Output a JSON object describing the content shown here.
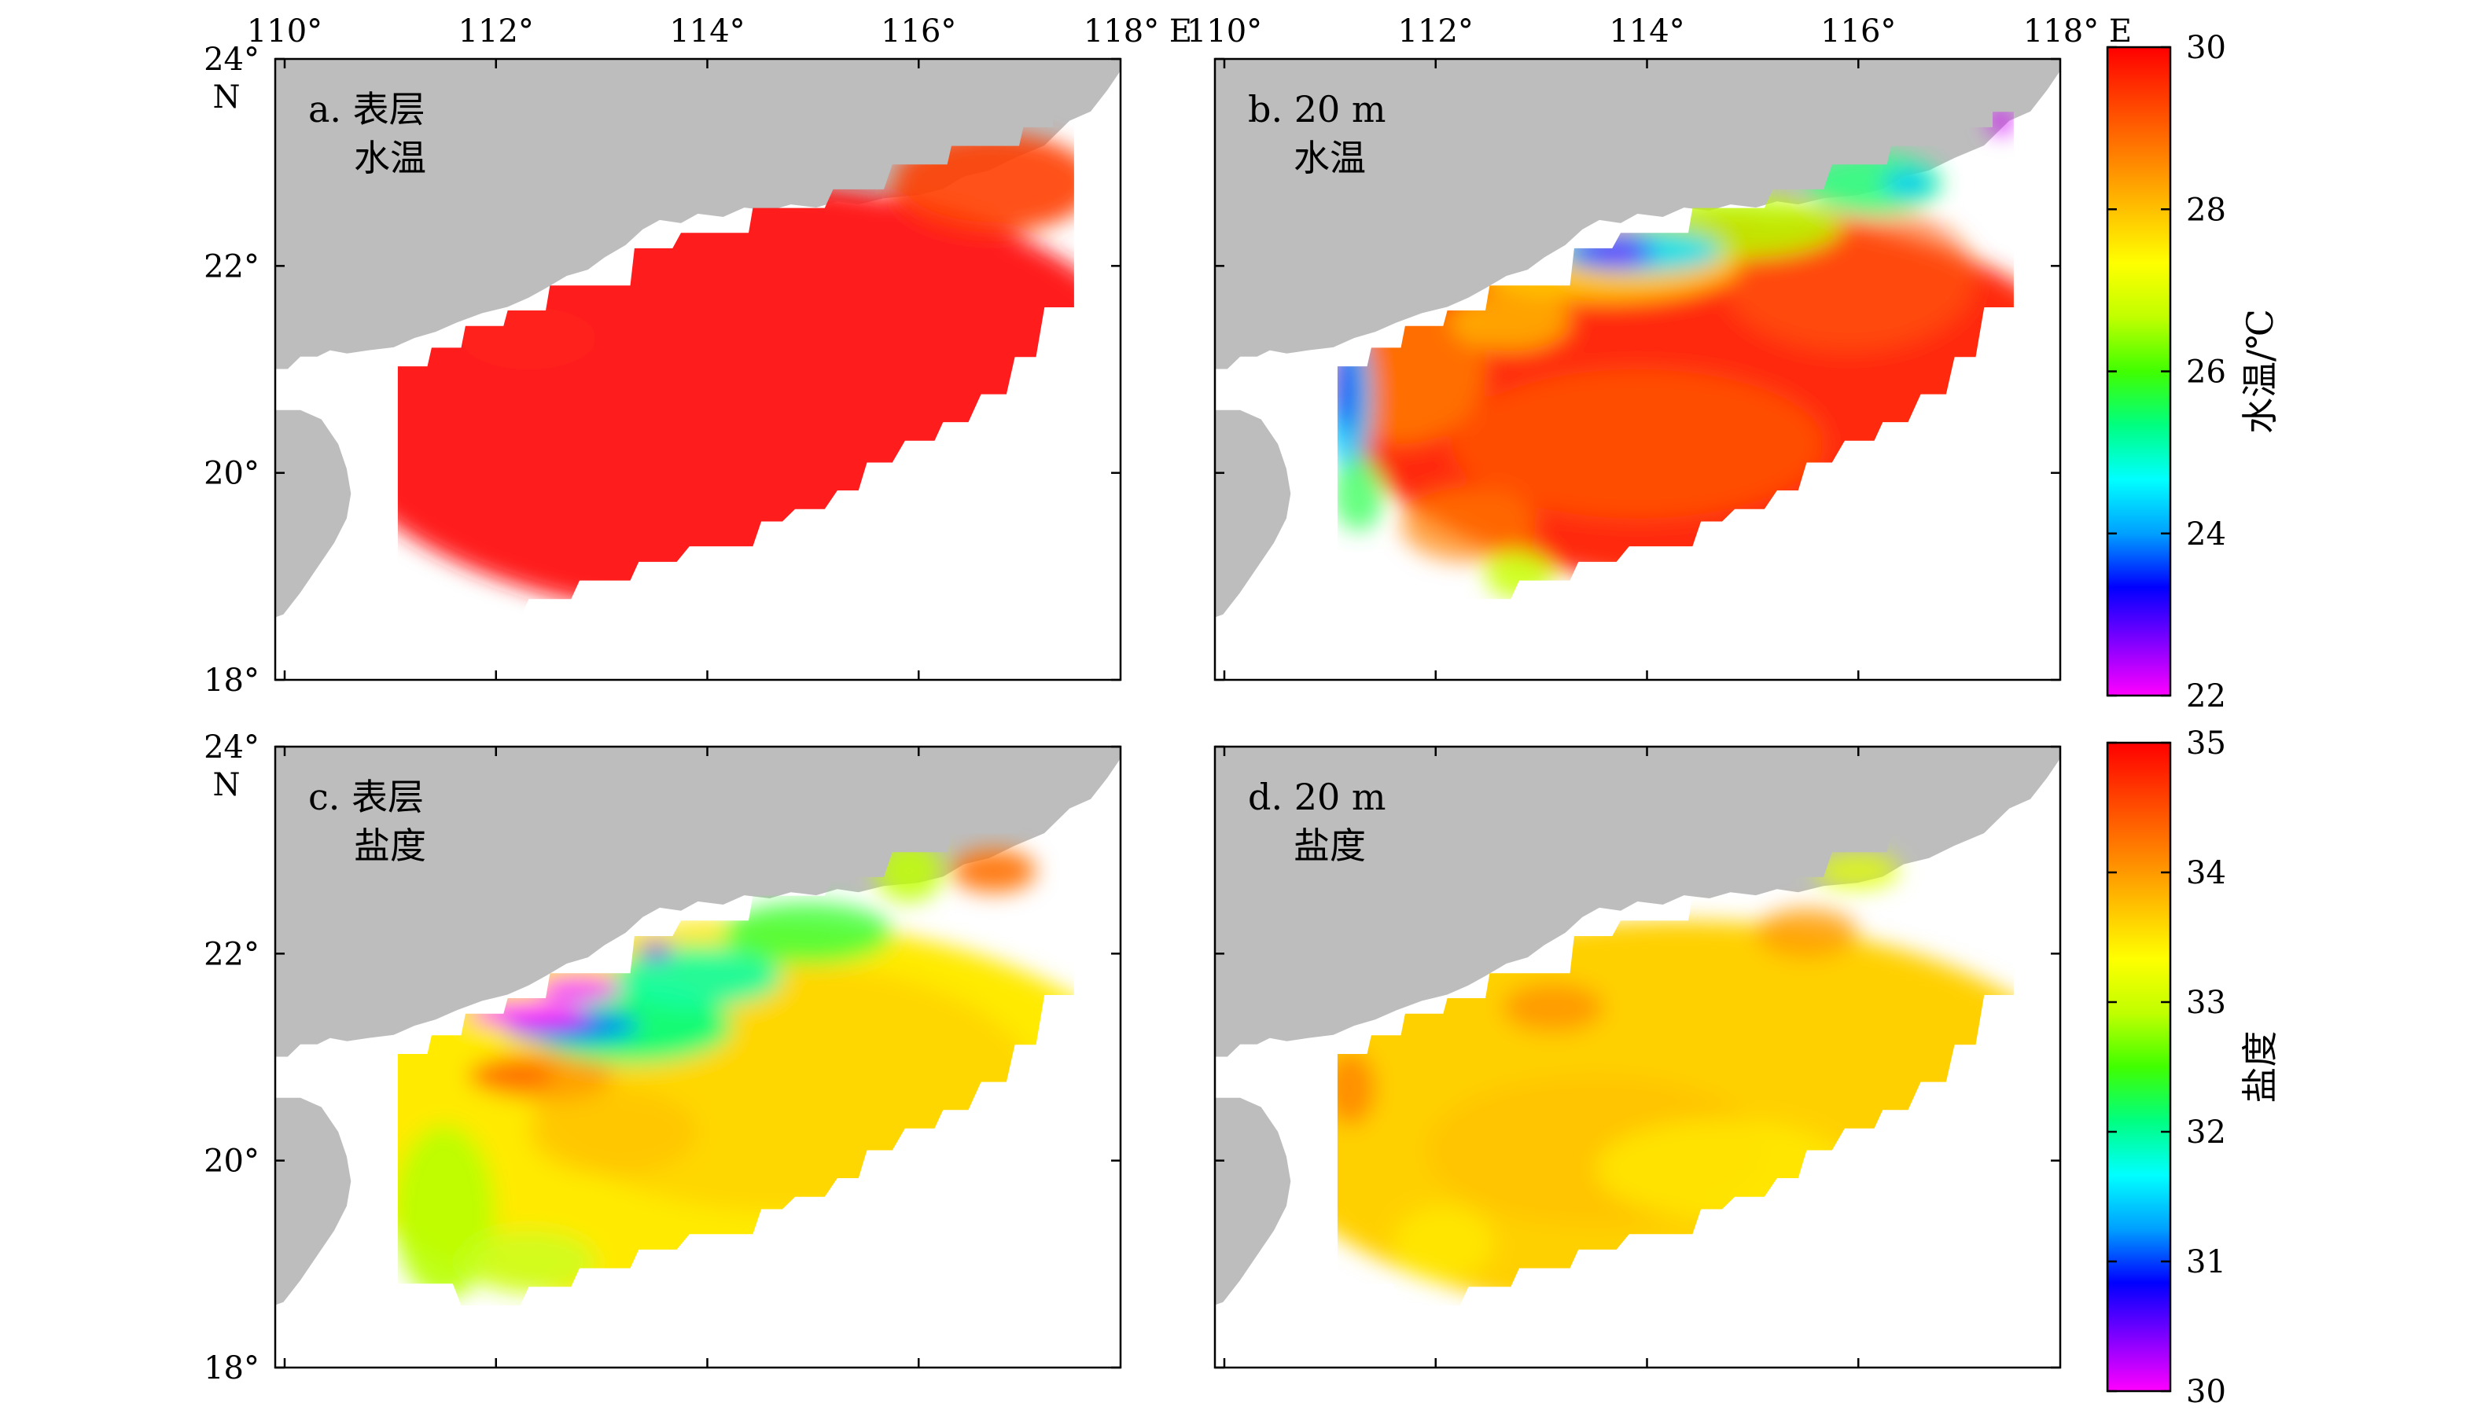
{
  "figure": {
    "lon_ticks": [
      110,
      112,
      114,
      116,
      118
    ],
    "lat_ticks": [
      18,
      20,
      22,
      24
    ],
    "lon_extent": [
      110,
      118
    ],
    "lat_extent": [
      18,
      24
    ],
    "lon_tick_labels": [
      "110°",
      "112°",
      "114°",
      "116°",
      "118° E"
    ],
    "lat_tick_labels": [
      "18°",
      "20°",
      "22°",
      "24°"
    ],
    "lat_unit_label": "N",
    "land_color": "#bdbdbd",
    "ocean_color": "#ffffff",
    "panels": [
      {
        "id": "a",
        "label_line1": "a. 表层",
        "label_line2": "水温",
        "variable": "temperature",
        "depth": "surface",
        "colorbar": "temp"
      },
      {
        "id": "b",
        "label_line1": "b. 20 m",
        "label_line2": "水温",
        "variable": "temperature",
        "depth": "20 m",
        "colorbar": "temp"
      },
      {
        "id": "c",
        "label_line1": "c. 表层",
        "label_line2": "盐度",
        "variable": "salinity",
        "depth": "surface",
        "colorbar": "sal"
      },
      {
        "id": "d",
        "label_line1": "d. 20 m",
        "label_line2": "盐度",
        "variable": "salinity",
        "depth": "20 m",
        "colorbar": "sal"
      }
    ],
    "colorbars": {
      "temp": {
        "title": "水温/℃",
        "min": 22,
        "max": 30,
        "ticks": [
          "22",
          "24",
          "26",
          "28",
          "30"
        ]
      },
      "sal": {
        "title": "盐度",
        "min": 30,
        "max": 35,
        "ticks": [
          "30",
          "31",
          "32",
          "33",
          "34",
          "35"
        ]
      }
    },
    "colormap": [
      "#ff00ff",
      "#8000ff",
      "#0000ff",
      "#00a0ff",
      "#00ffff",
      "#00ff80",
      "#40ff00",
      "#c0ff00",
      "#ffff00",
      "#ffc000",
      "#ff8000",
      "#ff4000",
      "#ff0000"
    ]
  }
}
